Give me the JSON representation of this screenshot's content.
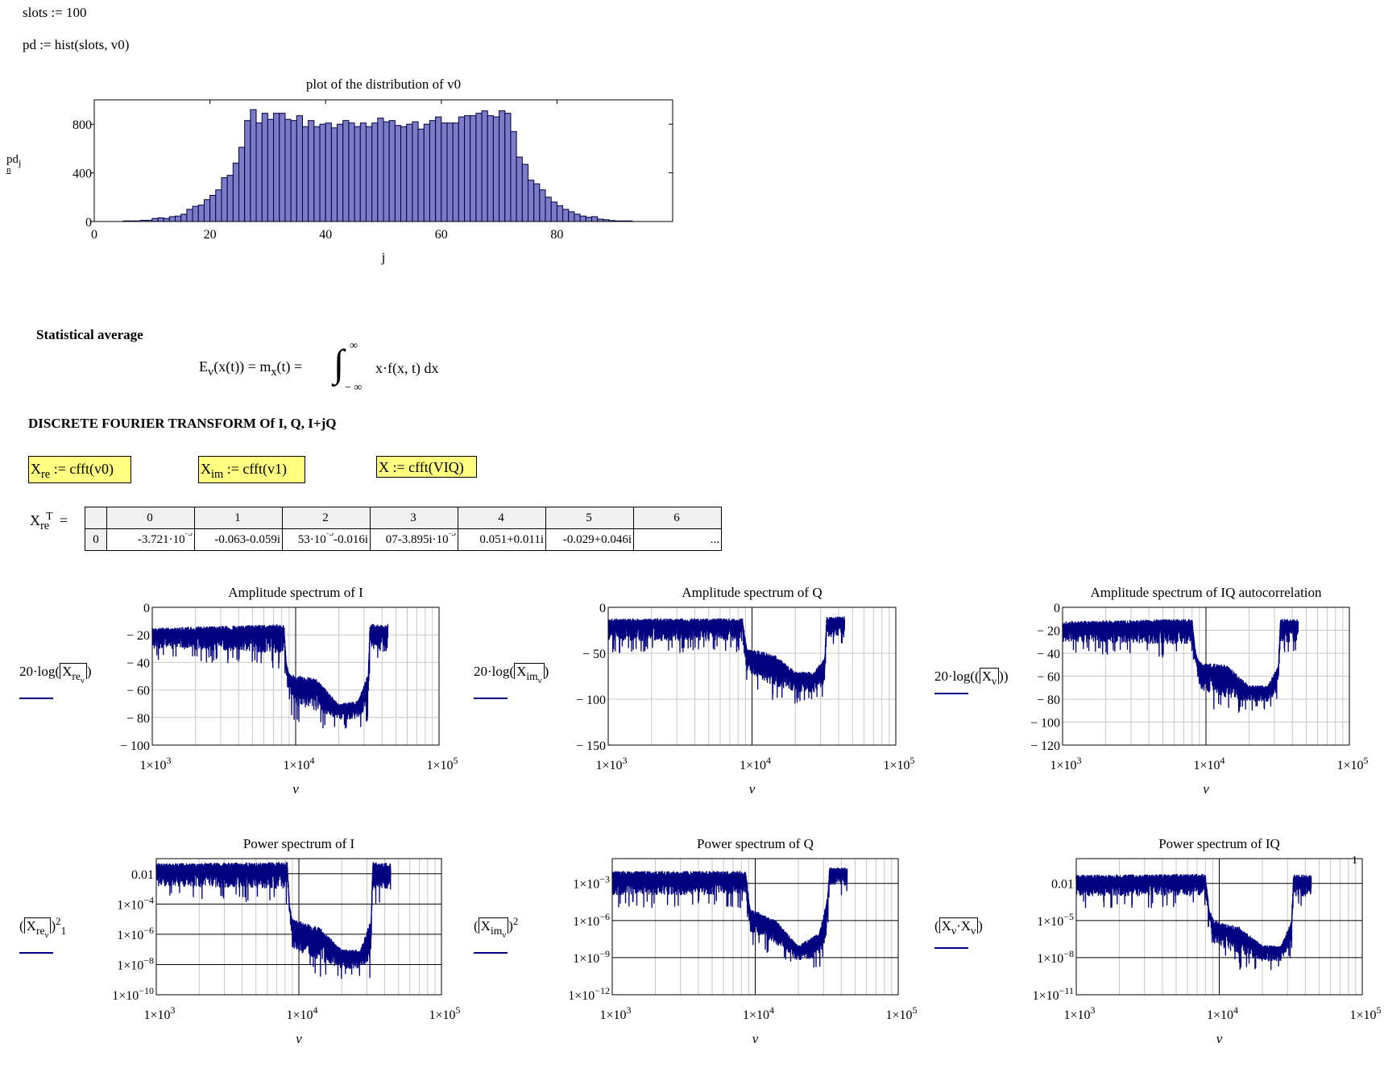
{
  "worksheet": {
    "slots_def": "slots := 100",
    "pd_def": "pd := hist(slots, v0)",
    "section_stat": "Statistical average",
    "formula": {
      "lhs": "E",
      "lhs_sub": "v",
      "lhs_arg": "(x(t)) = m",
      "m_sub": "x",
      "m_arg": "(t) =",
      "upper": "∞",
      "lower": "− ∞",
      "integrand": "x·f(x, t) dx"
    },
    "section_dft": "DISCRETE FOURIER TRANSFORM Of I, Q, I+jQ",
    "defs": [
      {
        "var": "X",
        "sub": "re",
        "rhs": " := cfft(v0)"
      },
      {
        "var": "X",
        "sub": "im",
        "rhs": " := cfft(v1)"
      },
      {
        "var": "X",
        "sub": "",
        "rhs": " := cfft(VIQ)"
      }
    ],
    "highlight_color": "#ffff80",
    "matrix": {
      "label_var": "X",
      "label_sub": "re",
      "label_sup": "T",
      "label_eq": "=",
      "col_headers": [
        "0",
        "1",
        "2",
        "3",
        "4",
        "5",
        "6"
      ],
      "row_index": "0",
      "cells": [
        "-3.721·10^-5",
        "-0.063-0.059i",
        "53·10^-3-0.016i",
        "07-3.895i·10^-3",
        "0.051+0.011i",
        "-0.029+0.046i",
        "..."
      ]
    },
    "trace_color": "#000080"
  },
  "chart_data": [
    {
      "type": "bar",
      "title": "plot of the distribution of v0",
      "xlabel": "j",
      "ylabel": "pd",
      "ylabel_sub": "j",
      "legend_mark": "n",
      "xlim": [
        0,
        100
      ],
      "ylim": [
        0,
        1000
      ],
      "xticks": [
        "0",
        "20",
        "40",
        "60",
        "80"
      ],
      "yticks": [
        "0",
        "400",
        "800"
      ],
      "bar_color": "#7b7bc8",
      "x": [
        0,
        1,
        2,
        3,
        4,
        5,
        6,
        7,
        8,
        9,
        10,
        11,
        12,
        13,
        14,
        15,
        16,
        17,
        18,
        19,
        20,
        21,
        22,
        23,
        24,
        25,
        26,
        27,
        28,
        29,
        30,
        31,
        32,
        33,
        34,
        35,
        36,
        37,
        38,
        39,
        40,
        41,
        42,
        43,
        44,
        45,
        46,
        47,
        48,
        49,
        50,
        51,
        52,
        53,
        54,
        55,
        56,
        57,
        58,
        59,
        60,
        61,
        62,
        63,
        64,
        65,
        66,
        67,
        68,
        69,
        70,
        71,
        72,
        73,
        74,
        75,
        76,
        77,
        78,
        79,
        80,
        81,
        82,
        83,
        84,
        85,
        86,
        87,
        88,
        89,
        90,
        91,
        92,
        93,
        94,
        95,
        96,
        97,
        98,
        99
      ],
      "values": [
        0,
        0,
        0,
        0,
        0,
        5,
        5,
        5,
        10,
        10,
        25,
        30,
        25,
        40,
        45,
        60,
        100,
        125,
        135,
        180,
        215,
        260,
        360,
        380,
        480,
        610,
        830,
        920,
        810,
        890,
        840,
        890,
        890,
        840,
        830,
        870,
        780,
        830,
        780,
        800,
        810,
        770,
        800,
        830,
        810,
        780,
        810,
        780,
        810,
        850,
        820,
        830,
        790,
        780,
        800,
        820,
        760,
        800,
        830,
        860,
        810,
        810,
        810,
        860,
        870,
        870,
        890,
        910,
        870,
        860,
        910,
        890,
        740,
        530,
        470,
        340,
        310,
        260,
        200,
        160,
        130,
        100,
        80,
        60,
        45,
        35,
        40,
        20,
        15,
        8,
        5,
        5,
        5,
        0,
        0,
        0,
        0,
        0,
        0,
        0
      ]
    },
    {
      "type": "line",
      "title": "Amplitude spectrum of I",
      "xlabel": "ν",
      "ylabel": {
        "prefix": "20·log",
        "var": "X",
        "sub": "re",
        "subsub": "ν"
      },
      "xscale": "log",
      "xlim": [
        1000,
        100000
      ],
      "ylim": [
        -100,
        0
      ],
      "yscale": "linear",
      "xticks": [
        "1×10^3",
        "1×10^4",
        "1×10^5"
      ],
      "yticks": [
        "0",
        "− 20",
        "− 40",
        "− 60",
        "− 80",
        "− 100"
      ],
      "ytick_values": [
        0,
        -20,
        -40,
        -60,
        -80,
        -100
      ],
      "grid": true,
      "envelope": {
        "columns": [
          "freq",
          "upper_dB",
          "lower_dB"
        ],
        "rows": [
          [
            1000,
            -15,
            -38
          ],
          [
            8300,
            -12,
            -45
          ],
          [
            8600,
            -40,
            -55
          ],
          [
            9000,
            -48,
            -82
          ],
          [
            14000,
            -52,
            -88
          ],
          [
            20000,
            -70,
            -88
          ],
          [
            27000,
            -68,
            -88
          ],
          [
            32000,
            -48,
            -85
          ],
          [
            33000,
            -12,
            -40
          ],
          [
            44000,
            -12,
            -45
          ]
        ]
      }
    },
    {
      "type": "line",
      "title": "Amplitude spectrum of Q",
      "xlabel": "ν",
      "ylabel": {
        "prefix": "20·log",
        "var": "X",
        "sub": "im",
        "subsub": "ν"
      },
      "xscale": "log",
      "xlim": [
        1000,
        100000
      ],
      "ylim": [
        -150,
        0
      ],
      "yscale": "linear",
      "xticks": [
        "1×10^3",
        "1×10^4",
        "1×10^5"
      ],
      "yticks": [
        "0",
        "− 50",
        "− 100",
        "− 150"
      ],
      "ytick_values": [
        0,
        -50,
        -100,
        -150
      ],
      "grid": true,
      "envelope": {
        "columns": [
          "freq",
          "upper_dB",
          "lower_dB"
        ],
        "rows": [
          [
            1000,
            -12,
            -50
          ],
          [
            8600,
            -12,
            -50
          ],
          [
            9200,
            -45,
            -85
          ],
          [
            14000,
            -50,
            -105
          ],
          [
            20000,
            -70,
            -105
          ],
          [
            27000,
            -70,
            -105
          ],
          [
            32000,
            -55,
            -100
          ],
          [
            33000,
            -10,
            -45
          ],
          [
            44000,
            -10,
            -45
          ]
        ]
      }
    },
    {
      "type": "line",
      "title": "Amplitude spectrum of IQ autocorrelation",
      "xlabel": "ν",
      "ylabel": {
        "prefix": "20·log",
        "var": "X",
        "sub": "",
        "subsub": "ν"
      },
      "xscale": "log",
      "xlim": [
        1000,
        100000
      ],
      "ylim": [
        -120,
        0
      ],
      "yscale": "linear",
      "xticks": [
        "1×10^3",
        "1×10^4",
        "1×10^5"
      ],
      "yticks": [
        "0",
        "− 20",
        "− 40",
        "− 60",
        "− 80",
        "− 100",
        "− 120"
      ],
      "ytick_values": [
        0,
        -20,
        -40,
        -60,
        -80,
        -100,
        -120
      ],
      "grid": true,
      "envelope": {
        "columns": [
          "freq",
          "upper_dB",
          "lower_dB"
        ],
        "rows": [
          [
            1000,
            -12,
            -40
          ],
          [
            8000,
            -10,
            -45
          ],
          [
            8500,
            -40,
            -60
          ],
          [
            9200,
            -48,
            -85
          ],
          [
            14000,
            -50,
            -95
          ],
          [
            20000,
            -68,
            -90
          ],
          [
            27000,
            -68,
            -90
          ],
          [
            32000,
            -50,
            -85
          ],
          [
            33000,
            -10,
            -40
          ],
          [
            44000,
            -10,
            -45
          ]
        ]
      }
    },
    {
      "type": "line",
      "title": "Power spectrum of I",
      "xlabel": "ν",
      "ylabel": {
        "var": "X",
        "sub": "re",
        "subsub": "ν",
        "sup": "2",
        "legend_mark": "1"
      },
      "xscale": "log",
      "xlim": [
        1000,
        100000
      ],
      "yscale": "log",
      "ylim": [
        1e-10,
        0.1
      ],
      "xticks": [
        "1×10^3",
        "1×10^4",
        "1×10^5"
      ],
      "yticks": [
        "0.01",
        "1×10^−4",
        "1×10^−6",
        "1×10^−8",
        "1×10^−10"
      ],
      "ytick_values": [
        0.01,
        0.0001,
        1e-06,
        1e-08,
        1e-10
      ],
      "grid": true,
      "envelope": {
        "columns": [
          "freq",
          "upper",
          "lower"
        ],
        "rows": [
          [
            1000,
            0.05,
            0.0002
          ],
          [
            8300,
            0.06,
            0.0001
          ],
          [
            8600,
            0.0001,
            1e-05
          ],
          [
            9000,
            1e-05,
            1e-08
          ],
          [
            14000,
            3e-06,
            1e-09
          ],
          [
            20000,
            1e-07,
            1e-09
          ],
          [
            27000,
            1e-07,
            1e-09
          ],
          [
            32000,
            1e-05,
            1e-09
          ],
          [
            33000,
            0.06,
            0.0001
          ],
          [
            44000,
            0.05,
            0.0001
          ]
        ]
      }
    },
    {
      "type": "line",
      "title": "Power spectrum of Q",
      "xlabel": "ν",
      "ylabel": {
        "var": "X",
        "sub": "im",
        "subsub": "ν",
        "sup": "2"
      },
      "xscale": "log",
      "xlim": [
        1000,
        100000
      ],
      "yscale": "log",
      "ylim": [
        1e-12,
        0.1
      ],
      "xticks": [
        "1×10^3",
        "1×10^4",
        "1×10^5"
      ],
      "yticks": [
        "1×10^−3",
        "1×10^−6",
        "1×10^−9",
        "1×10^−12"
      ],
      "ytick_values": [
        0.001,
        1e-06,
        1e-09,
        1e-12
      ],
      "grid": true,
      "envelope": {
        "columns": [
          "freq",
          "upper",
          "lower"
        ],
        "rows": [
          [
            1000,
            0.01,
            1e-05
          ],
          [
            8600,
            0.01,
            1e-05
          ],
          [
            9200,
            1e-05,
            1e-08
          ],
          [
            14000,
            1e-06,
            1e-09
          ],
          [
            20000,
            1e-08,
            1e-10
          ],
          [
            28000,
            1e-07,
            1e-10
          ],
          [
            32000,
            0.0001,
            1e-09
          ],
          [
            33000,
            0.02,
            0.0001
          ],
          [
            44000,
            0.02,
            0.0001
          ]
        ]
      }
    },
    {
      "type": "line",
      "title": "Power spectrum of IQ",
      "xlabel": "ν",
      "ylabel": {
        "var": "X",
        "subsub": "ν",
        "op": "·"
      },
      "xscale": "log",
      "xlim": [
        1000,
        100000
      ],
      "yscale": "log",
      "ylim": [
        1e-11,
        1
      ],
      "xticks": [
        "1×10^3",
        "1×10^4",
        "1×10^5"
      ],
      "yticks": [
        "0.01",
        "1×10^−5",
        "1×10^−8",
        "1×10^−11"
      ],
      "ytick_values": [
        0.01,
        1e-05,
        1e-08,
        1e-11
      ],
      "marker_line": {
        "value": 1,
        "label": "1",
        "color": "#ff0000"
      },
      "grid": true,
      "envelope": {
        "columns": [
          "freq",
          "upper",
          "lower"
        ],
        "rows": [
          [
            1000,
            0.05,
            0.0001
          ],
          [
            8000,
            0.06,
            0.0001
          ],
          [
            8500,
            0.0001,
            1e-06
          ],
          [
            9200,
            1e-05,
            1e-08
          ],
          [
            14000,
            3e-06,
            1e-09
          ],
          [
            20000,
            1e-07,
            1e-09
          ],
          [
            27000,
            1e-07,
            1e-09
          ],
          [
            32000,
            1e-05,
            1e-08
          ],
          [
            33000,
            0.05,
            0.0001
          ],
          [
            44000,
            0.05,
            0.0001
          ]
        ]
      }
    }
  ]
}
